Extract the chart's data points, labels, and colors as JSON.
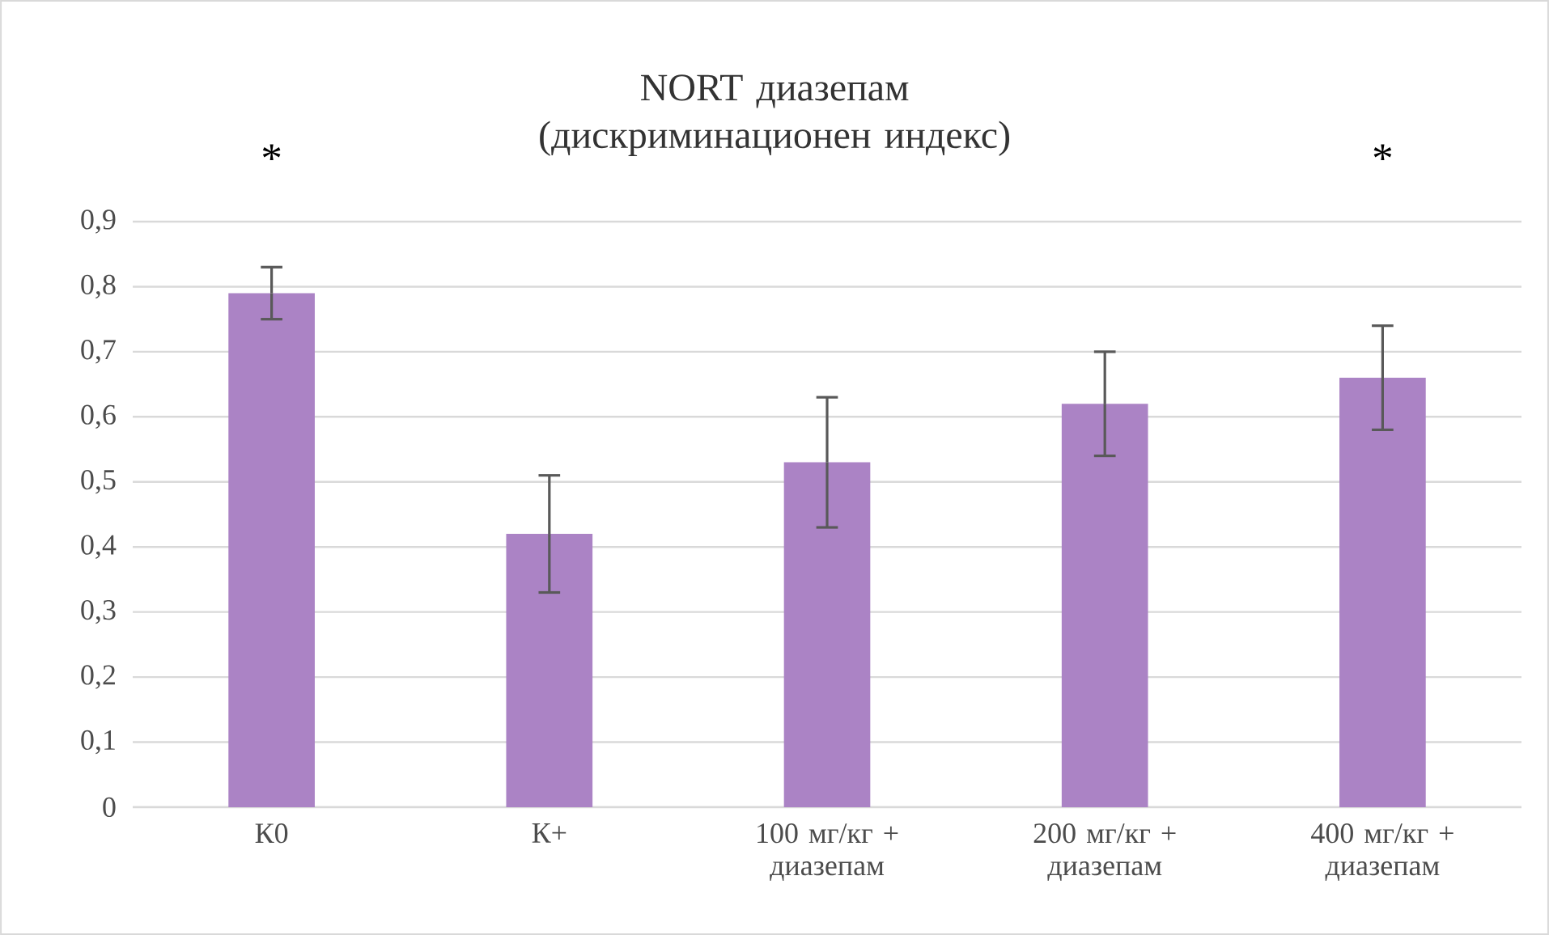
{
  "chart_data": {
    "type": "bar",
    "title": "NORT диазепам (дискриминационен индекс)",
    "categories": [
      "К0",
      "К+",
      "100 мг/кг + диазепам",
      "200 мг/кг + диазепам",
      "400 мг/кг + диазепам"
    ],
    "values": [
      0.79,
      0.42,
      0.53,
      0.62,
      0.66
    ],
    "errors": [
      0.04,
      0.09,
      0.1,
      0.08,
      0.08
    ],
    "color": "#ab83c5",
    "ylim": [
      0,
      0.9
    ],
    "yticks": [
      {
        "value": 0,
        "label": "0"
      },
      {
        "value": 0.1,
        "label": "0,1"
      },
      {
        "value": 0.2,
        "label": "0,2"
      },
      {
        "value": 0.3,
        "label": "0,3"
      },
      {
        "value": 0.4,
        "label": "0,4"
      },
      {
        "value": 0.5,
        "label": "0,5"
      },
      {
        "value": 0.6,
        "label": "0,6"
      },
      {
        "value": 0.7,
        "label": "0,7"
      },
      {
        "value": 0.8,
        "label": "0,8"
      },
      {
        "value": 0.9,
        "label": "0,9"
      }
    ],
    "grid": "y",
    "annotations": [
      "*",
      "*"
    ]
  }
}
